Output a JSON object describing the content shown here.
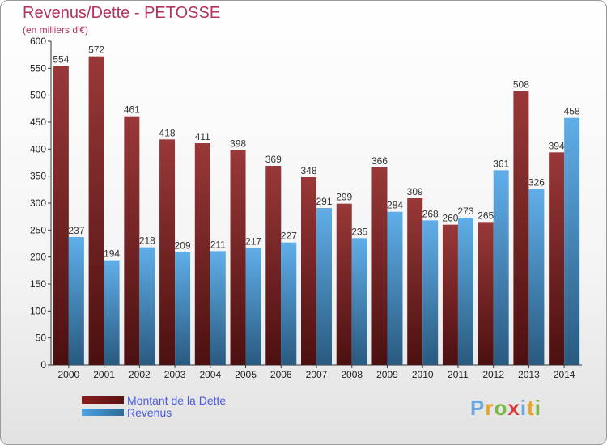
{
  "header": {
    "title": "Revenus/Dette - PETOSSE",
    "subtitle": "(en milliers d'€)"
  },
  "colors": {
    "debt": "#8b1d1d",
    "revenue": "#4aa3e6",
    "title": "#b2335e",
    "legend_text": "#4a5ae0"
  },
  "chart_data": {
    "type": "bar",
    "title": "Revenus/Dette - PETOSSE",
    "subtitle": "(en milliers d'€)",
    "xlabel": "",
    "ylabel": "",
    "ylim": [
      0,
      600
    ],
    "yticks": [
      0,
      50,
      100,
      150,
      200,
      250,
      300,
      350,
      400,
      450,
      500,
      550,
      600
    ],
    "grid": false,
    "legend_position": "bottom-left",
    "categories": [
      "2000",
      "2001",
      "2002",
      "2003",
      "2004",
      "2005",
      "2006",
      "2007",
      "2008",
      "2009",
      "2010",
      "2011",
      "2012",
      "2013",
      "2014"
    ],
    "series": [
      {
        "name": "Montant de la Dette",
        "values": [
          554,
          572,
          461,
          418,
          411,
          398,
          369,
          348,
          299,
          366,
          309,
          260,
          265,
          508,
          394
        ]
      },
      {
        "name": "Revenus",
        "values": [
          237,
          194,
          218,
          209,
          211,
          217,
          227,
          291,
          235,
          284,
          268,
          273,
          361,
          326,
          458
        ]
      }
    ]
  },
  "legend": {
    "items": [
      {
        "label": "Montant de la Dette",
        "color": "#8b1d1d"
      },
      {
        "label": "Revenus",
        "color": "#4aa3e6"
      }
    ]
  },
  "logo": {
    "letters": [
      "P",
      "r",
      "o",
      "x",
      "i",
      "t",
      "i"
    ],
    "colors": [
      "#6aa8de",
      "#e8a224",
      "#7cb848",
      "#d93a3a",
      "#6aa8de",
      "#e8a224",
      "#7cb848"
    ]
  }
}
